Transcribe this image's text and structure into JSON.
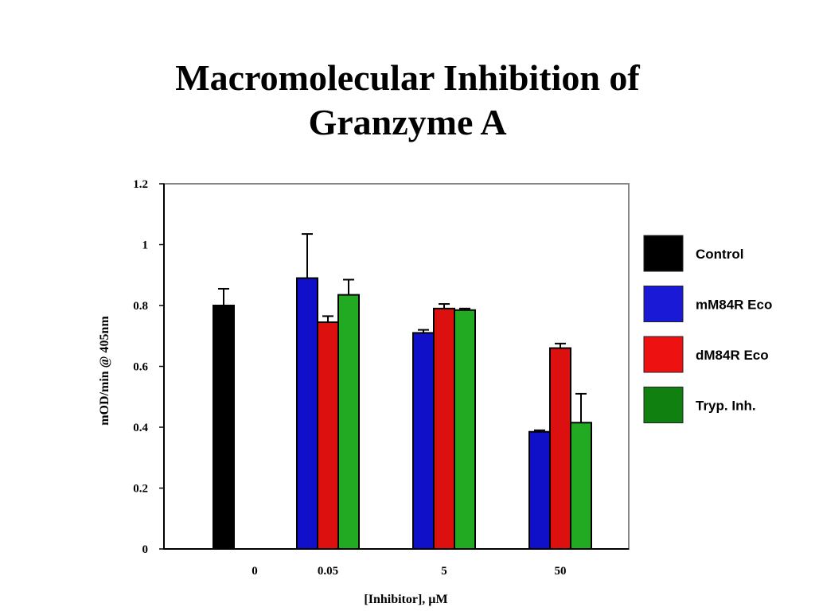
{
  "slide": {
    "title_line1": "Macromolecular Inhibition of",
    "title_line2": "Granzyme A"
  },
  "chart_data": {
    "type": "bar",
    "xlabel": "[Inhibitor], µM",
    "ylabel": "mOD/min @ 405nm",
    "ylim": [
      0,
      1.2
    ],
    "yticks": [
      0,
      0.2,
      0.4,
      0.6,
      0.8,
      1,
      1.2
    ],
    "ytick_labels": [
      "0",
      "0.2",
      "0.4",
      "0.6",
      "0.8",
      "1",
      "1.2"
    ],
    "categories": [
      "0",
      "0.05",
      "5",
      "50"
    ],
    "legend_position": "right",
    "grid": false,
    "series": [
      {
        "name": "Control",
        "color": "#000000",
        "legend_color": "#000000",
        "values": [
          0.8,
          null,
          null,
          null
        ],
        "errors": [
          0.055,
          null,
          null,
          null
        ]
      },
      {
        "name": "mM84R Eco",
        "color": "#1010c8",
        "legend_color": "#1a1ad6",
        "values": [
          0,
          0.89,
          0.71,
          0.385
        ],
        "errors": [
          0,
          0.145,
          0.01,
          0.005
        ]
      },
      {
        "name": "dM84R Eco",
        "color": "#dd1010",
        "legend_color": "#ee1111",
        "values": [
          0,
          0.745,
          0.79,
          0.66
        ],
        "errors": [
          0,
          0.02,
          0.015,
          0.015
        ]
      },
      {
        "name": "Tryp. Inh.",
        "color": "#22aa22",
        "legend_color": "#108010",
        "values": [
          0,
          0.835,
          0.785,
          0.415
        ],
        "errors": [
          0,
          0.05,
          0.005,
          0.095
        ]
      }
    ]
  }
}
